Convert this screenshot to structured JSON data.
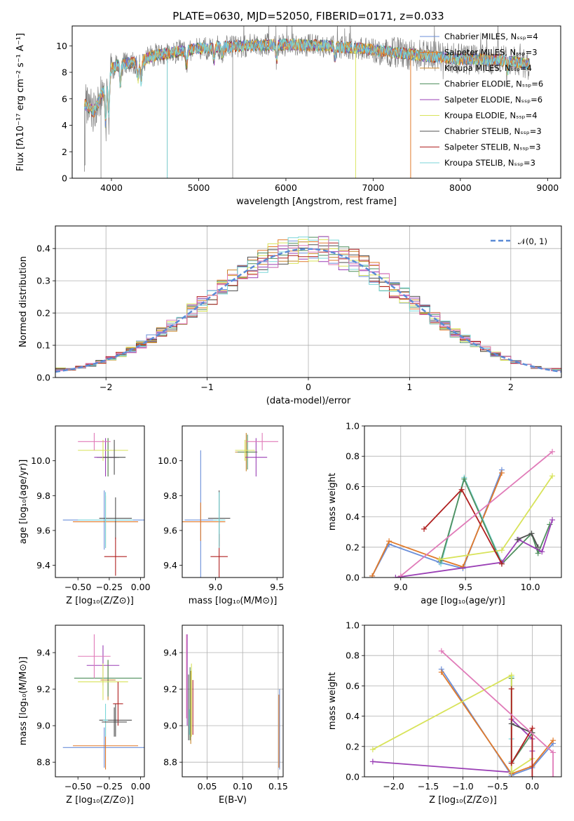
{
  "title": "PLATE=0630, MJD=52050, FIBERID=0171, z=0.033",
  "model_colors": [
    "#6b8fd9",
    "#e07a2b",
    "#c8862a",
    "#4f8f5e",
    "#9a3fb5",
    "#d8e35a",
    "#505050",
    "#b02020",
    "#7ad6d8"
  ],
  "pink_color": "#e07ab8",
  "gray_color": "#808080",
  "legend": [
    "Chabrier MILES, Nₛₛₚ=4",
    "Salpeter MILES, Nₛₛₚ=3",
    "Kroupa MILES, Nₛₛₚ=4",
    "Chabrier ELODIE, Nₛₛₚ=6",
    "Salpeter ELODIE, Nₛₛₚ=6",
    "Kroupa ELODIE, Nₛₛₚ=4",
    "Chabrier STELIB, Nₛₛₚ=3",
    "Salpeter STELIB, Nₛₛₚ=3",
    "Kroupa STELIB, Nₛₛₚ=3"
  ],
  "hist_legend": "𝒩(0, 1)",
  "chart_data": [
    {
      "type": "line",
      "id": "spectrum",
      "title": "PLATE=0630, MJD=52050, FIBERID=0171, z=0.033",
      "xlabel": "wavelength [Angstrom, rest frame]",
      "ylabel": "Flux [fλ10⁻¹⁷ erg cm⁻² s⁻¹ A⁻¹]",
      "xlim": [
        3550,
        9150
      ],
      "ylim": [
        0,
        11.5
      ],
      "xticks": [
        "4000",
        "5000",
        "6000",
        "7000",
        "8000",
        "9000"
      ],
      "yticks": [
        "0",
        "2",
        "4",
        "6",
        "8",
        "10"
      ],
      "continuum": {
        "x": [
          3690,
          3800,
          3900,
          4000,
          4100,
          4200,
          4300,
          4500,
          4800,
          5000,
          5500,
          6000,
          6500,
          7000,
          7500,
          8000,
          8500,
          8800
        ],
        "y": [
          5.6,
          5.0,
          6.5,
          8.3,
          8.6,
          8.7,
          8.7,
          9.3,
          9.6,
          9.8,
          10.0,
          10.1,
          10.0,
          9.7,
          9.3,
          9.0,
          8.9,
          8.6
        ]
      }
    },
    {
      "type": "bar",
      "id": "residuals",
      "xlabel": "(data-model)/error",
      "ylabel": "Normed distribution",
      "xlim": [
        -2.5,
        2.5
      ],
      "ylim": [
        0,
        0.47
      ],
      "xticks": [
        "−2",
        "−1",
        "0",
        "1",
        "2"
      ],
      "yticks": [
        "0.0",
        "0.1",
        "0.2",
        "0.3",
        "0.4"
      ],
      "bin_width": 0.1,
      "reference": {
        "name": "𝒩(0, 1)",
        "mean": 0,
        "sigma": 1
      }
    },
    {
      "type": "scatter",
      "id": "age-vs-metallicity",
      "xlabel": "Z [log₁₀(Z/Z⊙)]",
      "ylabel": "age  [log₁₀(age/yr)]",
      "xlim": [
        -0.68,
        0.03
      ],
      "ylim": [
        9.33,
        10.2
      ],
      "xticks": [
        "−0.50",
        "−0.25",
        "0.00"
      ],
      "yticks": [
        "9.4",
        "9.6",
        "9.8",
        "10.0"
      ],
      "points": [
        {
          "x": -0.29,
          "y": 9.66,
          "xerr": 0.33,
          "yerr": 0.17,
          "c": 0
        },
        {
          "x": -0.28,
          "y": 9.65,
          "xerr": 0.26,
          "yerr": 0.15,
          "c": 1
        },
        {
          "x": -0.26,
          "y": 10.02,
          "xerr": 0.06,
          "yerr": 0.11,
          "c": 2
        },
        {
          "x": -0.26,
          "y": 10.02,
          "xerr": 0.09,
          "yerr": 0.11,
          "c": 3
        },
        {
          "x": -0.28,
          "y": 10.02,
          "xerr": 0.09,
          "yerr": 0.11,
          "c": 4
        },
        {
          "x": -0.3,
          "y": 10.06,
          "xerr": 0.2,
          "yerr": 0.06,
          "c": 5
        },
        {
          "x": -0.2,
          "y": 9.67,
          "xerr": 0.13,
          "yerr": 0.12,
          "c": 6
        },
        {
          "x": -0.2,
          "y": 9.45,
          "xerr": 0.09,
          "yerr": 0.11,
          "c": 7
        },
        {
          "x": -0.28,
          "y": 9.66,
          "xerr": 0.22,
          "yerr": 0.16,
          "c": 8
        },
        {
          "x": -0.37,
          "y": 10.11,
          "xerr": 0.13,
          "yerr": 0.05,
          "c": "pink"
        },
        {
          "x": -0.21,
          "y": 10.02,
          "xerr": 0.09,
          "yerr": 0.1,
          "c": 6
        }
      ]
    },
    {
      "type": "scatter",
      "id": "age-vs-mass",
      "xlabel": "mass [log₁₀(M/M⊙)]",
      "ylabel": "",
      "xlim": [
        8.73,
        9.55
      ],
      "ylim": [
        9.33,
        10.2
      ],
      "xticks": [
        "9.0",
        "9.5"
      ],
      "yticks": [
        "9.4",
        "9.6",
        "9.8",
        "10.0"
      ],
      "points": [
        {
          "x": 8.88,
          "y": 9.66,
          "xerr": 0.13,
          "yerr": 0.4,
          "c": 0
        },
        {
          "x": 8.88,
          "y": 9.65,
          "xerr": 0.2,
          "yerr": 0.11,
          "c": 1
        },
        {
          "x": 9.25,
          "y": 10.05,
          "xerr": 0.09,
          "yerr": 0.11,
          "c": 2
        },
        {
          "x": 9.26,
          "y": 10.05,
          "xerr": 0.08,
          "yerr": 0.1,
          "c": 3
        },
        {
          "x": 9.33,
          "y": 10.02,
          "xerr": 0.09,
          "yerr": 0.11,
          "c": 4
        },
        {
          "x": 9.24,
          "y": 10.06,
          "xerr": 0.08,
          "yerr": 0.06,
          "c": 5
        },
        {
          "x": 9.03,
          "y": 9.67,
          "xerr": 0.09,
          "yerr": 0.16,
          "c": 6
        },
        {
          "x": 9.03,
          "y": 9.45,
          "xerr": 0.07,
          "yerr": 0.13,
          "c": 7
        },
        {
          "x": 9.03,
          "y": 9.66,
          "xerr": 0.05,
          "yerr": 0.16,
          "c": 8
        },
        {
          "x": 9.38,
          "y": 10.11,
          "xerr": 0.13,
          "yerr": 0.05,
          "c": "pink"
        }
      ]
    },
    {
      "type": "line",
      "id": "mass-weight-vs-age",
      "xlabel": "age  [log₁₀(age/yr)]",
      "ylabel": "mass weight",
      "xlim": [
        8.72,
        10.24
      ],
      "ylim": [
        0,
        1
      ],
      "xticks": [
        "9.0",
        "9.5",
        "10.0"
      ],
      "yticks": [
        "0.0",
        "0.2",
        "0.4",
        "0.6",
        "0.8",
        "1.0"
      ],
      "series": [
        {
          "c": 0,
          "x": [
            8.78,
            8.91,
            9.3,
            9.48,
            9.78
          ],
          "y": [
            0.01,
            0.22,
            0.1,
            0.06,
            0.71
          ]
        },
        {
          "c": 1,
          "x": [
            8.78,
            8.91,
            9.3,
            9.48,
            9.78
          ],
          "y": [
            0.01,
            0.24,
            0.12,
            0.07,
            0.69
          ]
        },
        {
          "c": 8,
          "x": [
            9.31,
            9.49,
            9.78
          ],
          "y": [
            0.09,
            0.66,
            0.1
          ]
        },
        {
          "c": 3,
          "x": [
            9.31,
            9.49,
            9.78,
            10.01,
            10.06,
            10.15
          ],
          "y": [
            0.11,
            0.65,
            0.09,
            0.29,
            0.16,
            0.35
          ]
        },
        {
          "c": 4,
          "x": [
            8.96,
            9.78,
            9.91,
            10.09,
            10.17
          ],
          "y": [
            0.0,
            0.1,
            0.25,
            0.17,
            0.38
          ]
        },
        {
          "c": 5,
          "x": [
            9.3,
            9.78,
            10.17
          ],
          "y": [
            0.12,
            0.18,
            0.67
          ]
        },
        {
          "c": 7,
          "x": [
            9.18,
            9.47,
            9.78
          ],
          "y": [
            0.32,
            0.58,
            0.09
          ]
        },
        {
          "c": 6,
          "x": [
            9.9,
            10.01,
            10.06
          ],
          "y": [
            0.25,
            0.29,
            0.2
          ]
        },
        {
          "c": "pink",
          "x": [
            9.0,
            10.17
          ],
          "y": [
            0.01,
            0.83
          ]
        }
      ]
    },
    {
      "type": "scatter",
      "id": "mass-vs-metallicity",
      "xlabel": "Z [log₁₀(Z/Z⊙)]",
      "ylabel": "mass [log₁₀(M/M⊙)]",
      "xlim": [
        -0.68,
        0.03
      ],
      "ylim": [
        8.72,
        9.55
      ],
      "xticks": [
        "−0.50",
        "−0.25",
        "0.00"
      ],
      "yticks": [
        "8.8",
        "9.0",
        "9.2",
        "9.4"
      ],
      "points": [
        {
          "x": -0.29,
          "y": 8.88,
          "xerr": 0.33,
          "yerr": 0.11,
          "c": 0
        },
        {
          "x": -0.28,
          "y": 8.89,
          "xerr": 0.26,
          "yerr": 0.13,
          "c": 1
        },
        {
          "x": -0.26,
          "y": 9.25,
          "xerr": 0.06,
          "yerr": 0.11,
          "c": 2
        },
        {
          "x": -0.26,
          "y": 9.26,
          "xerr": 0.27,
          "yerr": 0.1,
          "c": 3
        },
        {
          "x": -0.3,
          "y": 9.33,
          "xerr": 0.13,
          "yerr": 0.11,
          "c": 4
        },
        {
          "x": -0.3,
          "y": 9.24,
          "xerr": 0.2,
          "yerr": 0.1,
          "c": 5
        },
        {
          "x": -0.2,
          "y": 9.03,
          "xerr": 0.13,
          "yerr": 0.09,
          "c": 6
        },
        {
          "x": -0.18,
          "y": 9.12,
          "xerr": 0.04,
          "yerr": 0.12,
          "c": 7
        },
        {
          "x": -0.28,
          "y": 9.03,
          "xerr": 0.02,
          "yerr": 0.09,
          "c": 8
        },
        {
          "x": -0.37,
          "y": 9.38,
          "xerr": 0.13,
          "yerr": 0.12,
          "c": "pink"
        },
        {
          "x": -0.21,
          "y": 9.02,
          "xerr": 0.1,
          "yerr": 0.08,
          "c": 6
        }
      ]
    },
    {
      "type": "scatter",
      "id": "mass-vs-extinction",
      "xlabel": "E(B-V)",
      "ylabel": "",
      "xlim": [
        0.015,
        0.157
      ],
      "ylim": [
        8.72,
        9.55
      ],
      "xticks": [
        "0.05",
        "0.10",
        "0.15"
      ],
      "yticks": [
        "8.8",
        "9.0",
        "9.2",
        "9.4"
      ],
      "points": [
        {
          "x": 0.152,
          "y": 8.98,
          "xerr": 0,
          "yerr": 0.22,
          "c": 0
        },
        {
          "x": 0.151,
          "y": 8.97,
          "xerr": 0,
          "yerr": 0.2,
          "c": 1
        },
        {
          "x": 0.027,
          "y": 9.1,
          "xerr": 0,
          "yerr": 0.2,
          "c": 2
        },
        {
          "x": 0.026,
          "y": 9.12,
          "xerr": 0,
          "yerr": 0.2,
          "c": 3
        },
        {
          "x": 0.022,
          "y": 9.25,
          "xerr": 0,
          "yerr": 0.25,
          "c": 4
        },
        {
          "x": 0.028,
          "y": 9.14,
          "xerr": 0,
          "yerr": 0.2,
          "c": 5
        },
        {
          "x": 0.024,
          "y": 9.1,
          "xerr": 0,
          "yerr": 0.18,
          "c": 6
        },
        {
          "x": 0.03,
          "y": 9.1,
          "xerr": 0,
          "yerr": 0.15,
          "c": 7
        },
        {
          "x": 0.025,
          "y": 9.02,
          "xerr": 0,
          "yerr": 0.07,
          "c": 8
        },
        {
          "x": 0.021,
          "y": 9.27,
          "xerr": 0,
          "yerr": 0.23,
          "c": "pink"
        }
      ]
    },
    {
      "type": "line",
      "id": "mass-weight-vs-metallicity",
      "xlabel": "Z [log₁₀(Z/Z⊙)]",
      "ylabel": "mass weight",
      "xlim": [
        -2.42,
        0.42
      ],
      "ylim": [
        0,
        1
      ],
      "xticks": [
        "−2.0",
        "−1.5",
        "−1.0",
        "−0.5",
        "0.0"
      ],
      "yticks": [
        "0.0",
        "0.2",
        "0.4",
        "0.6",
        "0.8",
        "1.0"
      ],
      "series": [
        {
          "c": 0,
          "x": [
            -1.31,
            -0.3,
            0.0,
            0.3
          ],
          "y": [
            0.71,
            0.01,
            0.06,
            0.22
          ]
        },
        {
          "c": 1,
          "x": [
            -1.31,
            -0.3,
            0.0,
            0.3
          ],
          "y": [
            0.69,
            0.02,
            0.07,
            0.24
          ]
        },
        {
          "c": 8,
          "x": [
            -0.3,
            -0.3,
            -0.3
          ],
          "y": [
            0.1,
            0.66,
            0.25
          ]
        },
        {
          "c": 3,
          "x": [
            -0.3,
            -0.3,
            0.0
          ],
          "y": [
            0.65,
            0.09,
            0.29
          ]
        },
        {
          "c": 4,
          "x": [
            -2.3,
            -0.3,
            -0.3,
            0.0,
            0.0
          ],
          "y": [
            0.1,
            0.03,
            0.38,
            0.25,
            0.17
          ]
        },
        {
          "c": 5,
          "x": [
            -2.3,
            -0.3,
            -0.3,
            0.0
          ],
          "y": [
            0.18,
            0.67,
            0.03,
            0.12
          ]
        },
        {
          "c": 7,
          "x": [
            -0.3,
            -0.3,
            0.0,
            0.0
          ],
          "y": [
            0.58,
            0.09,
            0.32,
            0.0
          ]
        },
        {
          "c": 6,
          "x": [
            -0.3,
            0.0
          ],
          "y": [
            0.35,
            0.29
          ]
        },
        {
          "c": "pink",
          "x": [
            -1.31,
            0.3,
            0.3
          ],
          "y": [
            0.83,
            0.16,
            0.0
          ]
        }
      ]
    }
  ]
}
